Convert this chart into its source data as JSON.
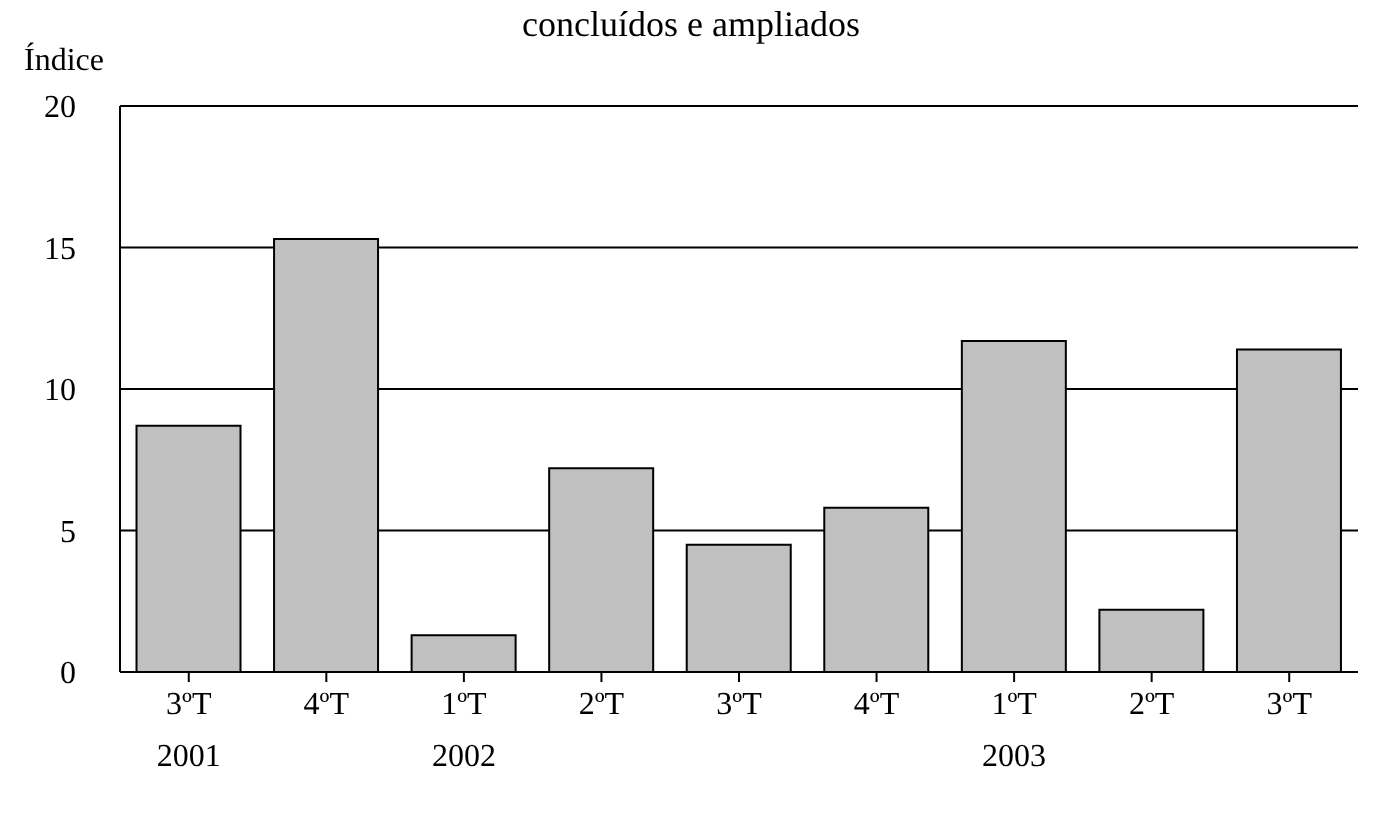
{
  "chart_data": {
    "type": "bar",
    "title": "concluídos e ampliados",
    "ylabel": "Índice",
    "categories": [
      "3ºT\n2001",
      "4ºT",
      "1ºT\n2002",
      "2ºT",
      "3ºT",
      "4ºT",
      "1ºT\n2003",
      "2ºT",
      "3ºT"
    ],
    "values": [
      8.7,
      15.3,
      1.3,
      7.2,
      4.5,
      5.8,
      11.7,
      2.2,
      11.4
    ],
    "color": "#c0c0c0",
    "ylim": [
      0,
      20
    ],
    "yticks": [
      0,
      5,
      10,
      15,
      20
    ],
    "grid": "y"
  }
}
